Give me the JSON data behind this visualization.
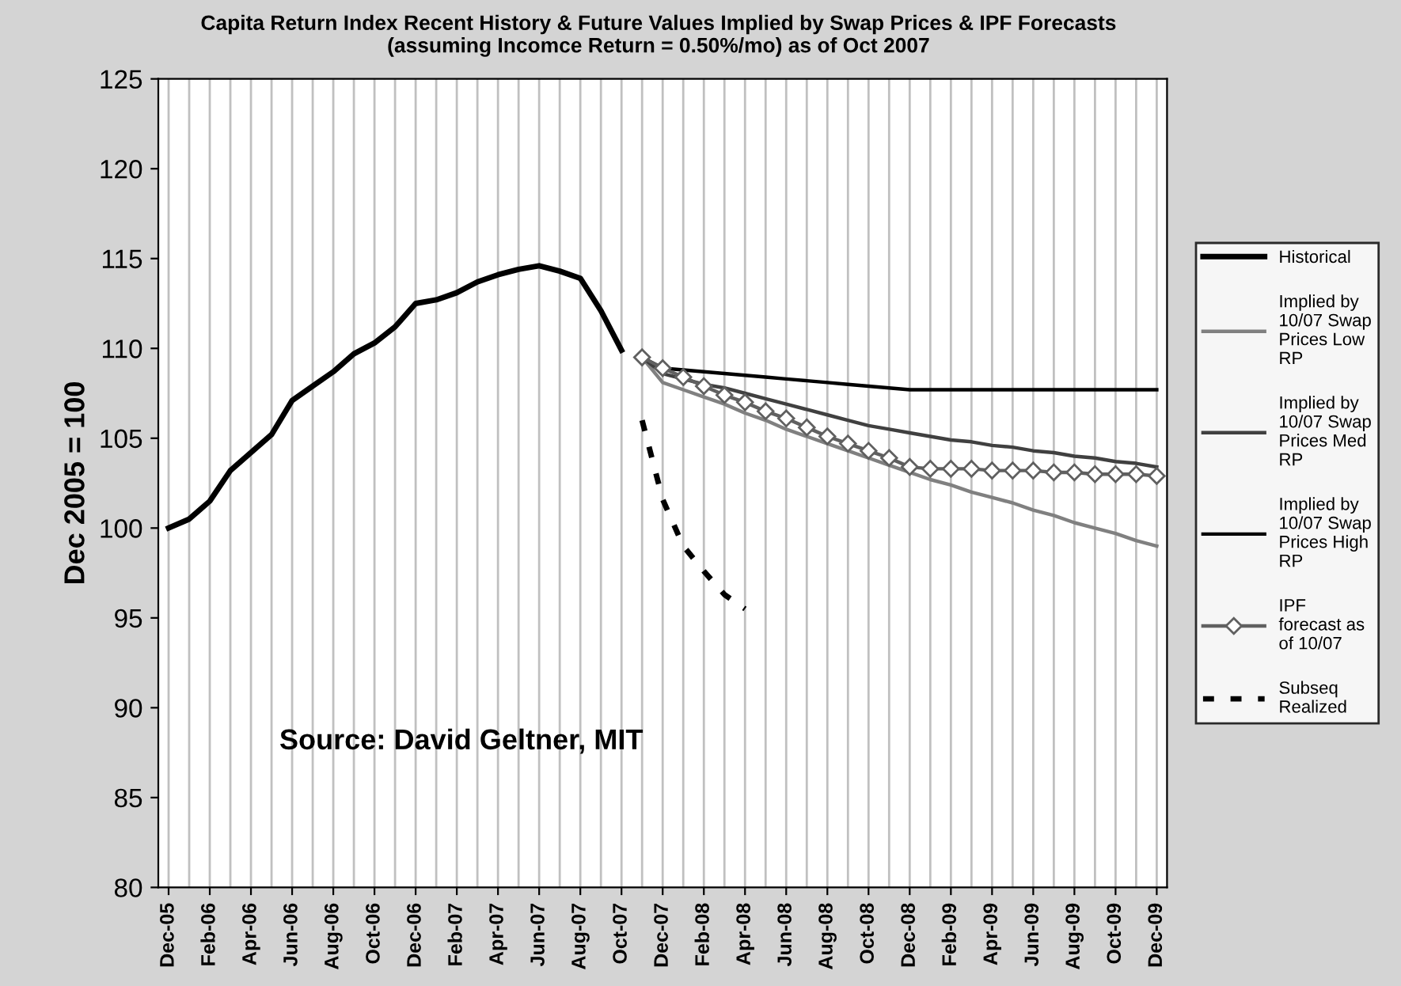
{
  "chart_data": {
    "type": "line",
    "title": "Capita Return Index Recent History & Future Values Implied by Swap Prices & IPF Forecasts\n(assuming Incomce Return = 0.50%/mo) as of Oct 2007",
    "ylabel": "Dec 2005 = 100",
    "categories": [
      "Dec-05",
      null,
      "Feb-06",
      null,
      "Apr-06",
      null,
      "Jun-06",
      null,
      "Aug-06",
      null,
      "Oct-06",
      null,
      "Dec-06",
      null,
      "Feb-07",
      null,
      "Apr-07",
      null,
      "Jun-07",
      null,
      "Aug-07",
      null,
      "Oct-07",
      null,
      "Dec-07",
      null,
      "Feb-08",
      null,
      "Apr-08",
      null,
      "Jun-08",
      null,
      "Aug-08",
      null,
      "Oct-08",
      null,
      "Dec-08",
      null,
      "Feb-09",
      null,
      "Apr-09",
      null,
      "Jun-09",
      null,
      "Aug-09",
      null,
      "Oct-09",
      null,
      "Dec-09"
    ],
    "series": [
      {
        "name": "Historical",
        "color": "#000000",
        "line_style": "solid",
        "values": [
          100.0,
          100.5,
          101.5,
          103.2,
          104.2,
          105.2,
          107.1,
          107.9,
          108.7,
          109.7,
          110.3,
          111.2,
          112.5,
          112.7,
          113.1,
          113.7,
          114.1,
          114.4,
          114.6,
          114.3,
          113.9,
          112.1,
          109.9,
          null,
          null,
          null,
          null,
          null,
          null,
          null,
          null,
          null,
          null,
          null,
          null,
          null,
          null,
          null,
          null,
          null,
          null,
          null,
          null,
          null,
          null,
          null,
          null,
          null,
          null
        ]
      },
      {
        "name": "Implied by 10/07 Swap Prices Low RP",
        "color": "#808080",
        "line_style": "solid",
        "values": [
          null,
          null,
          null,
          null,
          null,
          null,
          null,
          null,
          null,
          null,
          null,
          null,
          null,
          null,
          null,
          null,
          null,
          null,
          null,
          null,
          null,
          null,
          null,
          109.5,
          108.1,
          107.7,
          107.3,
          106.9,
          106.4,
          106.0,
          105.5,
          105.1,
          104.7,
          104.3,
          103.9,
          103.5,
          103.1,
          102.7,
          102.4,
          102.0,
          101.7,
          101.4,
          101.0,
          100.7,
          100.3,
          100.0,
          99.7,
          99.3,
          99.0
        ]
      },
      {
        "name": "Implied by 10/07 Swap Prices Med RP",
        "color": "#404040",
        "line_style": "solid",
        "values": [
          null,
          null,
          null,
          null,
          null,
          null,
          null,
          null,
          null,
          null,
          null,
          null,
          null,
          null,
          null,
          null,
          null,
          null,
          null,
          null,
          null,
          null,
          null,
          109.5,
          108.6,
          108.3,
          108.0,
          107.8,
          107.5,
          107.2,
          106.9,
          106.6,
          106.3,
          106.0,
          105.7,
          105.5,
          105.3,
          105.1,
          104.9,
          104.8,
          104.6,
          104.5,
          104.3,
          104.2,
          104.0,
          103.9,
          103.7,
          103.6,
          103.4
        ]
      },
      {
        "name": "Implied by 10/07 Swap Prices High RP",
        "color": "#000000",
        "line_style": "solid",
        "values": [
          null,
          null,
          null,
          null,
          null,
          null,
          null,
          null,
          null,
          null,
          null,
          null,
          null,
          null,
          null,
          null,
          null,
          null,
          null,
          null,
          null,
          null,
          null,
          109.5,
          108.9,
          108.8,
          108.7,
          108.6,
          108.5,
          108.4,
          108.3,
          108.2,
          108.1,
          108.0,
          107.9,
          107.8,
          107.7,
          107.7,
          107.7,
          107.7,
          107.7,
          107.7,
          107.7,
          107.7,
          107.7,
          107.7,
          107.7,
          107.7,
          107.7
        ]
      },
      {
        "name": "IPF forecast as of 10/07",
        "color": "#606060",
        "line_style": "solid",
        "marker": "diamond",
        "values": [
          null,
          null,
          null,
          null,
          null,
          null,
          null,
          null,
          null,
          null,
          null,
          null,
          null,
          null,
          null,
          null,
          null,
          null,
          null,
          null,
          null,
          null,
          null,
          109.5,
          108.9,
          108.4,
          107.9,
          107.4,
          107.0,
          106.5,
          106.1,
          105.6,
          105.1,
          104.7,
          104.3,
          103.9,
          103.4,
          103.3,
          103.3,
          103.3,
          103.2,
          103.2,
          103.2,
          103.1,
          103.1,
          103.0,
          103.0,
          103.0,
          102.9
        ]
      },
      {
        "name": "Subseq Realized",
        "color": "#000000",
        "line_style": "dashed",
        "values": [
          null,
          null,
          null,
          null,
          null,
          null,
          null,
          null,
          null,
          null,
          null,
          null,
          null,
          null,
          null,
          null,
          null,
          null,
          null,
          null,
          null,
          null,
          null,
          106.0,
          101.6,
          99.0,
          97.6,
          96.3,
          95.5,
          null,
          null,
          null,
          null,
          null,
          null,
          null,
          null,
          null,
          null,
          null,
          null,
          null,
          null,
          null,
          null,
          null,
          null,
          null,
          null
        ]
      }
    ],
    "ylim": [
      80,
      125
    ],
    "yticks": [
      80,
      85,
      90,
      95,
      100,
      105,
      110,
      115,
      120,
      125
    ],
    "grid": "x",
    "legend": "right",
    "annotations": [
      "Source: David Geltner, MIT"
    ]
  }
}
